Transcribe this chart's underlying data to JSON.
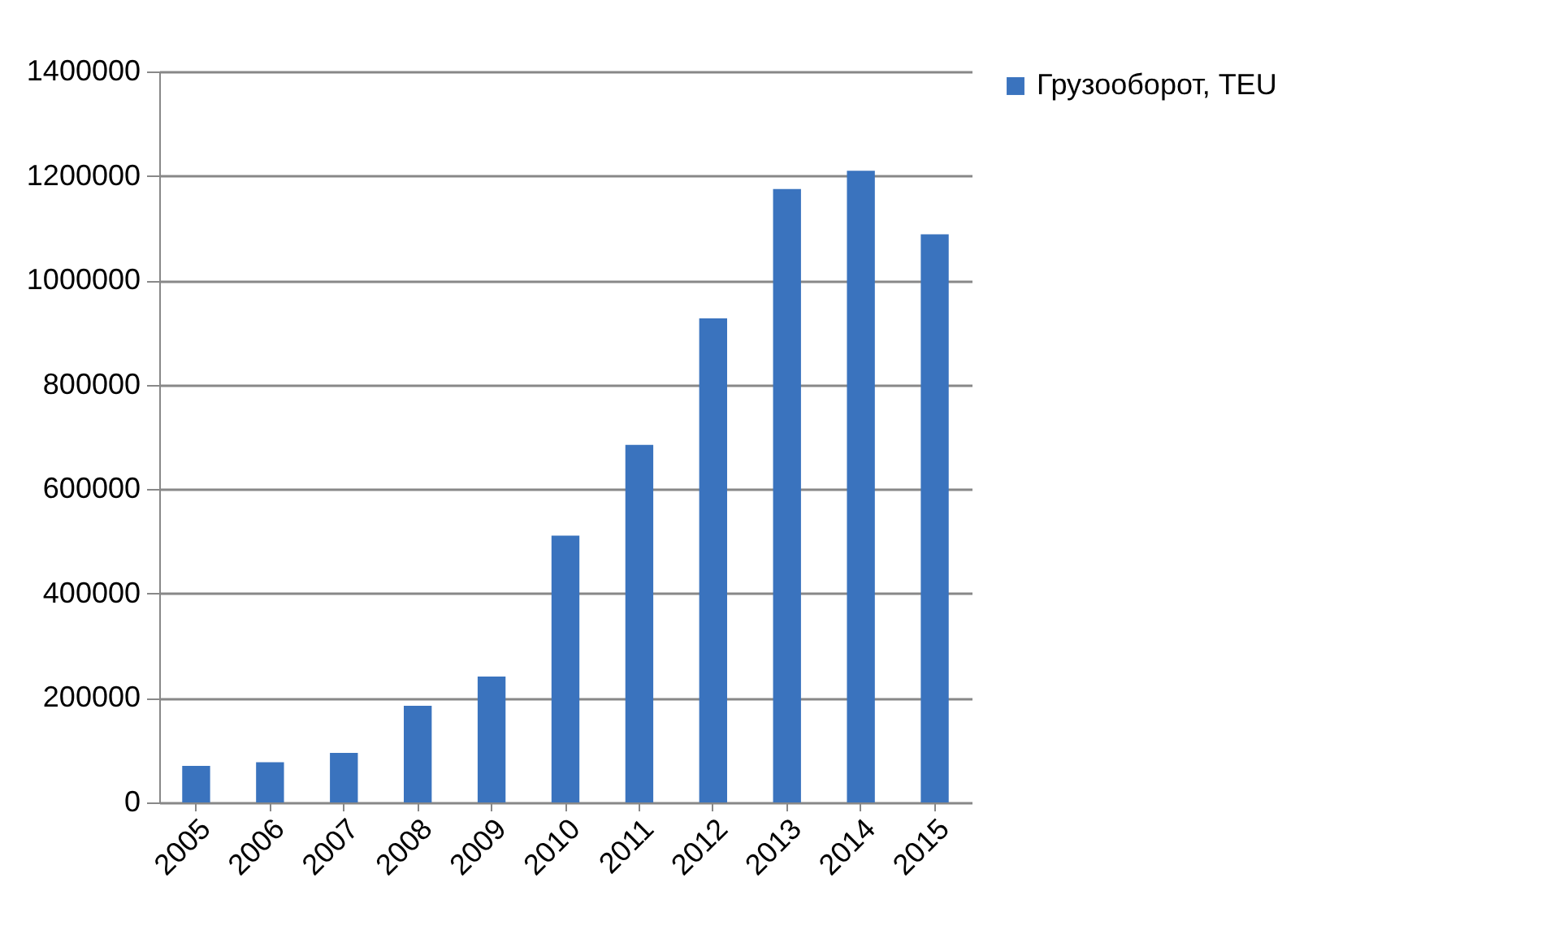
{
  "chart_data": {
    "type": "bar",
    "categories": [
      "2005",
      "2006",
      "2007",
      "2008",
      "2009",
      "2010",
      "2011",
      "2012",
      "2013",
      "2014",
      "2015"
    ],
    "series": [
      {
        "name": "Грузооборот, TEU",
        "color": "#3a73be",
        "values": [
          70000,
          77000,
          95000,
          185000,
          241000,
          511000,
          685000,
          927000,
          1175000,
          1210000,
          1088000
        ]
      }
    ],
    "ylim": [
      0,
      1400000
    ],
    "yticks": [
      0,
      200000,
      400000,
      600000,
      800000,
      1000000,
      1200000,
      1400000
    ],
    "grid": "y",
    "legend": "right"
  }
}
